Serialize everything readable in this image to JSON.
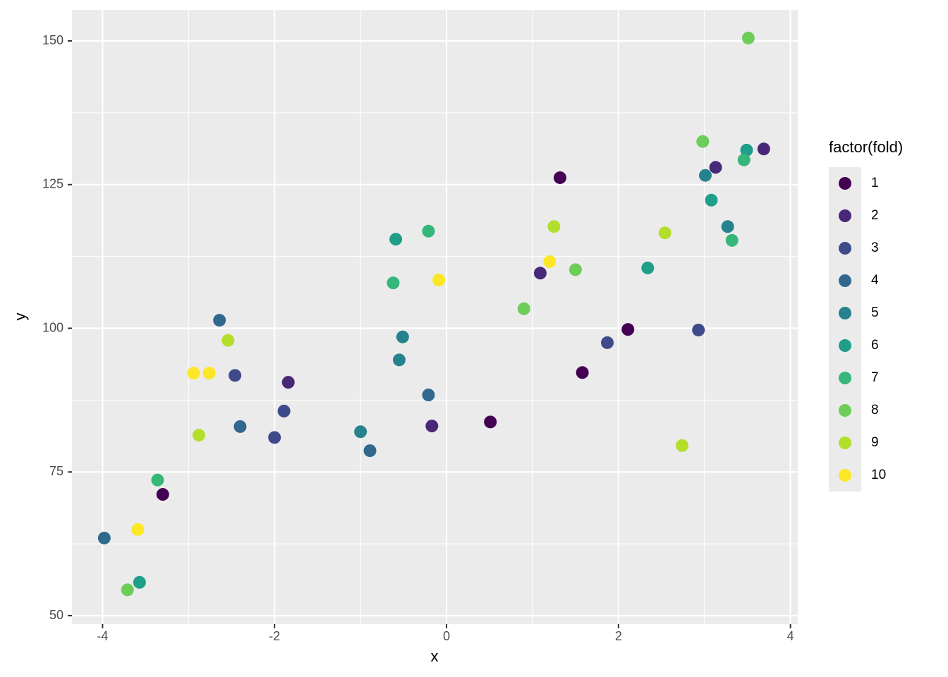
{
  "chart_data": {
    "type": "scatter",
    "xlabel": "x",
    "ylabel": "y",
    "legend_title": "factor(fold)",
    "legend_position": "right",
    "grid": true,
    "xlim": [
      -4.356,
      4.085
    ],
    "ylim": [
      48.53,
      155.4
    ],
    "xticks": [
      -4,
      -2,
      0,
      2,
      4
    ],
    "yticks": [
      50,
      75,
      100,
      125,
      150
    ],
    "xminor": [
      -3,
      -1,
      1,
      3
    ],
    "yminor": [
      62.5,
      87.5,
      112.5,
      137.5
    ],
    "series": [
      {
        "name": "1",
        "color": "#440154",
        "x": [
          -3.3,
          1.32,
          0.51,
          1.58,
          2.11
        ],
        "values": [
          71.1,
          126.2,
          83.7,
          92.3,
          99.8
        ]
      },
      {
        "name": "2",
        "color": "#482878",
        "x": [
          -1.84,
          -0.17,
          1.09,
          3.13,
          3.69
        ],
        "values": [
          90.6,
          83.0,
          109.6,
          128.0,
          131.2
        ]
      },
      {
        "name": "3",
        "color": "#3E4A89",
        "x": [
          -2.46,
          -1.89,
          -2.0,
          1.87,
          2.93
        ],
        "values": [
          91.8,
          85.6,
          81.0,
          97.5,
          99.7
        ]
      },
      {
        "name": "4",
        "color": "#31688E",
        "x": [
          -3.98,
          -2.64,
          -2.4,
          -0.89,
          -0.21
        ],
        "values": [
          63.5,
          101.4,
          82.9,
          78.7,
          88.4
        ]
      },
      {
        "name": "5",
        "color": "#26828E",
        "x": [
          -1.0,
          -0.55,
          -0.51,
          3.01,
          3.27
        ],
        "values": [
          82.0,
          94.5,
          98.5,
          126.6,
          117.7
        ]
      },
      {
        "name": "6",
        "color": "#1F9E89",
        "x": [
          -3.57,
          -0.59,
          2.34,
          3.08,
          3.49
        ],
        "values": [
          55.8,
          115.5,
          110.5,
          122.3,
          131.0
        ]
      },
      {
        "name": "7",
        "color": "#35B779",
        "x": [
          -3.36,
          -0.62,
          -0.21,
          3.32,
          3.46
        ],
        "values": [
          73.6,
          107.9,
          116.9,
          115.3,
          129.3
        ]
      },
      {
        "name": "8",
        "color": "#6DCD59",
        "x": [
          -3.71,
          0.9,
          1.5,
          2.98,
          3.51
        ],
        "values": [
          54.5,
          103.4,
          110.2,
          132.5,
          150.5
        ]
      },
      {
        "name": "9",
        "color": "#B4DE2C",
        "x": [
          -2.88,
          -2.54,
          1.25,
          2.54,
          2.74
        ],
        "values": [
          81.4,
          97.9,
          117.7,
          116.6,
          79.6
        ]
      },
      {
        "name": "10",
        "color": "#FDE725",
        "x": [
          -3.59,
          -2.94,
          -2.76,
          -0.09,
          1.2
        ],
        "values": [
          65.0,
          92.2,
          92.2,
          108.4,
          111.6
        ]
      }
    ]
  }
}
